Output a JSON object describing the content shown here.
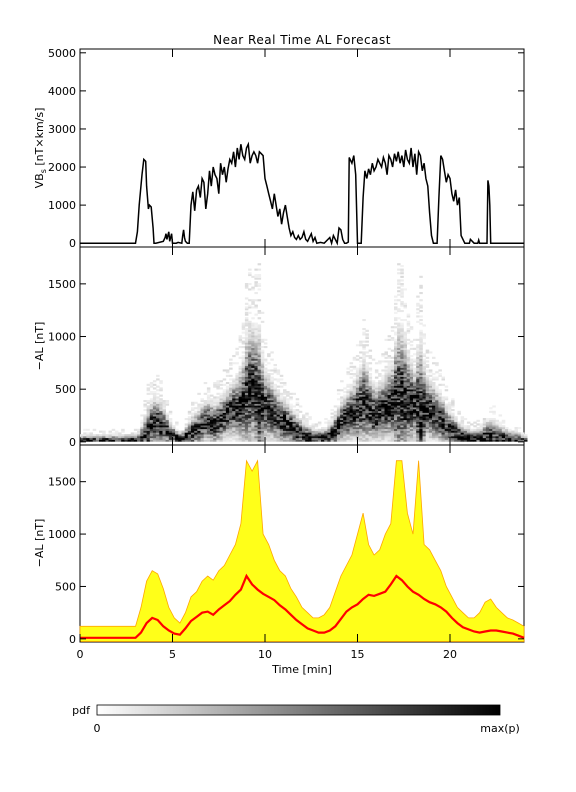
{
  "title": "Near Real Time AL Forecast",
  "xlabel": "Time [min]",
  "chart_data": [
    {
      "type": "line",
      "panel": "top",
      "ylabel_main": "VB",
      "ylabel_sub": "s",
      "ylabel_rest": " [nT×km/s]",
      "ylim": [
        -100,
        5100
      ],
      "yticks": [
        0,
        1000,
        2000,
        3000,
        4000,
        5000
      ],
      "xlim": [
        0,
        24
      ],
      "series": [
        {
          "color": "#000000",
          "x": [
            0,
            3.0,
            3.1,
            3.2,
            3.35,
            3.45,
            3.55,
            3.6,
            3.7,
            3.75,
            3.85,
            3.95,
            4.0,
            4.1,
            4.5,
            4.6,
            4.65,
            4.7,
            4.8,
            4.85,
            4.95,
            5.0,
            5.2,
            5.3,
            5.5,
            5.55,
            5.6,
            5.65,
            5.7,
            5.8,
            5.9,
            6.0,
            6.1,
            6.2,
            6.3,
            6.4,
            6.5,
            6.6,
            6.7,
            6.8,
            6.9,
            7.0,
            7.1,
            7.2,
            7.3,
            7.4,
            7.5,
            7.6,
            7.7,
            7.8,
            7.9,
            8.0,
            8.1,
            8.2,
            8.3,
            8.4,
            8.5,
            8.6,
            8.7,
            8.8,
            8.9,
            9.0,
            9.1,
            9.2,
            9.3,
            9.4,
            9.5,
            9.6,
            9.7,
            9.8,
            9.9,
            10.0,
            10.1,
            10.2,
            10.3,
            10.4,
            10.5,
            10.6,
            10.7,
            10.8,
            10.9,
            11.0,
            11.1,
            11.2,
            11.3,
            11.4,
            11.5,
            11.6,
            11.7,
            11.8,
            11.9,
            12.0,
            12.1,
            12.2,
            12.3,
            12.5,
            12.6,
            12.7,
            12.8,
            13.0,
            13.2,
            13.5,
            13.6,
            13.7,
            13.9,
            14.0,
            14.1,
            14.2,
            14.3,
            14.4,
            14.5,
            14.55,
            14.6,
            14.7,
            14.8,
            14.9,
            15.0,
            15.1,
            15.2,
            15.3,
            15.4,
            15.5,
            15.6,
            15.7,
            15.8,
            15.9,
            16.0,
            16.1,
            16.2,
            16.3,
            16.4,
            16.5,
            16.6,
            16.7,
            16.8,
            16.9,
            17.0,
            17.1,
            17.2,
            17.3,
            17.4,
            17.5,
            17.6,
            17.7,
            17.8,
            17.9,
            18.0,
            18.1,
            18.2,
            18.3,
            18.4,
            18.5,
            18.6,
            18.7,
            18.8,
            18.9,
            19.0,
            19.1,
            19.2,
            19.3,
            19.4,
            19.5,
            19.6,
            19.7,
            19.8,
            19.9,
            20.0,
            20.1,
            20.2,
            20.3,
            20.4,
            20.5,
            20.6,
            20.8,
            21.0,
            21.05,
            21.1,
            21.3,
            21.5,
            21.55,
            21.6,
            21.9,
            22.0,
            22.05,
            22.1,
            22.15,
            22.2,
            24.0
          ],
          "y": [
            0,
            0,
            300,
            1000,
            1800,
            2200,
            2150,
            1500,
            900,
            1000,
            950,
            400,
            0,
            0,
            50,
            150,
            250,
            100,
            300,
            50,
            250,
            0,
            0,
            20,
            0,
            200,
            350,
            150,
            50,
            0,
            0,
            1000,
            1350,
            850,
            1400,
            1500,
            1200,
            1700,
            1600,
            900,
            1300,
            1900,
            1500,
            2000,
            1800,
            1700,
            1300,
            2100,
            1800,
            2000,
            1600,
            1950,
            2200,
            2100,
            2400,
            2000,
            2500,
            2200,
            2600,
            2300,
            2200,
            2500,
            2600,
            2100,
            2300,
            2400,
            2300,
            2100,
            2400,
            2350,
            2300,
            1700,
            1500,
            1300,
            1100,
            900,
            1300,
            1000,
            700,
            900,
            500,
            800,
            1000,
            700,
            400,
            200,
            300,
            150,
            100,
            200,
            100,
            150,
            300,
            100,
            50,
            250,
            50,
            150,
            0,
            20,
            0,
            150,
            0,
            200,
            0,
            400,
            350,
            100,
            0,
            0,
            30,
            2250,
            2200,
            2100,
            2300,
            1800,
            0,
            0,
            0,
            1200,
            1900,
            1700,
            1950,
            1800,
            2100,
            1900,
            2000,
            2200,
            2100,
            2000,
            2250,
            2100,
            1800,
            2300,
            2200,
            2000,
            2350,
            2150,
            2400,
            2100,
            2300,
            2000,
            2450,
            2200,
            2100,
            2500,
            2000,
            2350,
            1800,
            2400,
            2300,
            1900,
            2100,
            1700,
            1500,
            800,
            200,
            0,
            0,
            0,
            1200,
            2300,
            2200,
            1900,
            1600,
            1800,
            1700,
            1300,
            1100,
            1400,
            1000,
            1200,
            200,
            0,
            0,
            0,
            100,
            0,
            0,
            80,
            0,
            0,
            0,
            1650,
            1500,
            1000,
            0,
            0
          ]
        }
      ]
    },
    {
      "type": "heatmap",
      "panel": "middle",
      "ylabel": "−AL [nT]",
      "ylim": [
        -30,
        1850
      ],
      "yticks": [
        0,
        500,
        1000,
        1500
      ],
      "xlim": [
        0,
        24
      ],
      "x": [
        0,
        0.5,
        1.0,
        1.5,
        2.0,
        2.5,
        3.0,
        3.3,
        3.6,
        3.9,
        4.2,
        4.5,
        4.8,
        5.1,
        5.4,
        5.7,
        6.0,
        6.3,
        6.6,
        6.9,
        7.2,
        7.5,
        7.8,
        8.1,
        8.4,
        8.7,
        9.0,
        9.3,
        9.6,
        9.9,
        10.2,
        10.5,
        10.8,
        11.1,
        11.4,
        11.7,
        12.0,
        12.3,
        12.6,
        12.9,
        13.2,
        13.5,
        13.8,
        14.1,
        14.4,
        14.7,
        15.0,
        15.3,
        15.6,
        15.9,
        16.2,
        16.5,
        16.8,
        17.1,
        17.4,
        17.7,
        18.0,
        18.3,
        18.6,
        18.9,
        19.2,
        19.5,
        19.8,
        20.1,
        20.4,
        20.7,
        21.0,
        21.3,
        21.6,
        21.9,
        22.2,
        22.5,
        22.8,
        23.1,
        23.4,
        23.7,
        24.0
      ],
      "center": [
        10,
        10,
        10,
        10,
        10,
        10,
        10,
        40,
        100,
        180,
        170,
        130,
        80,
        40,
        20,
        60,
        90,
        120,
        180,
        200,
        160,
        210,
        250,
        300,
        320,
        360,
        480,
        520,
        380,
        330,
        310,
        250,
        200,
        170,
        120,
        90,
        60,
        40,
        30,
        30,
        40,
        60,
        120,
        200,
        240,
        280,
        320,
        380,
        300,
        250,
        290,
        340,
        370,
        430,
        420,
        380,
        340,
        300,
        320,
        290,
        250,
        200,
        130,
        90,
        70,
        40,
        30,
        20,
        30,
        40,
        40,
        30,
        30,
        20,
        20,
        10,
        0
      ],
      "upper": [
        120,
        120,
        120,
        120,
        120,
        120,
        120,
        300,
        550,
        650,
        620,
        480,
        300,
        200,
        150,
        250,
        400,
        450,
        550,
        600,
        560,
        650,
        700,
        800,
        900,
        1100,
        1700,
        1600,
        1700,
        1000,
        900,
        750,
        650,
        600,
        480,
        400,
        300,
        250,
        200,
        200,
        230,
        300,
        450,
        600,
        700,
        800,
        1000,
        1200,
        900,
        800,
        850,
        1000,
        1100,
        1700,
        1700,
        1200,
        1000,
        1700,
        900,
        850,
        750,
        650,
        500,
        400,
        300,
        250,
        200,
        200,
        250,
        350,
        380,
        300,
        250,
        200,
        180,
        150,
        120
      ]
    },
    {
      "type": "area",
      "panel": "bottom",
      "ylabel": "−AL [nT]",
      "ylim": [
        -30,
        1850
      ],
      "yticks": [
        0,
        500,
        1000,
        1500
      ],
      "xlim": [
        0,
        24
      ],
      "xticks": [
        0,
        5,
        10,
        15,
        20
      ],
      "series": [
        {
          "color": "#ff0000",
          "x": [
            0,
            3.0,
            3.3,
            3.6,
            3.9,
            4.2,
            4.5,
            4.8,
            5.1,
            5.4,
            5.7,
            6.0,
            6.3,
            6.6,
            6.9,
            7.2,
            7.5,
            7.8,
            8.1,
            8.4,
            8.7,
            9.0,
            9.3,
            9.6,
            9.9,
            10.2,
            10.5,
            10.8,
            11.1,
            11.4,
            11.7,
            12.0,
            12.3,
            12.6,
            12.9,
            13.2,
            13.5,
            13.8,
            14.1,
            14.4,
            14.7,
            15.0,
            15.3,
            15.6,
            15.9,
            16.2,
            16.5,
            16.8,
            17.1,
            17.4,
            17.7,
            18.0,
            18.3,
            18.6,
            18.9,
            19.2,
            19.5,
            19.8,
            20.1,
            20.4,
            20.7,
            21.0,
            21.3,
            21.6,
            21.9,
            22.2,
            22.5,
            22.8,
            23.1,
            23.4,
            23.7,
            24.0
          ],
          "y": [
            10,
            10,
            60,
            150,
            200,
            180,
            120,
            80,
            50,
            40,
            100,
            170,
            210,
            250,
            260,
            230,
            280,
            320,
            360,
            420,
            470,
            600,
            520,
            470,
            430,
            400,
            370,
            320,
            280,
            230,
            180,
            140,
            100,
            80,
            60,
            60,
            80,
            120,
            190,
            260,
            300,
            330,
            380,
            420,
            410,
            430,
            450,
            520,
            600,
            560,
            500,
            450,
            420,
            380,
            350,
            330,
            300,
            260,
            200,
            150,
            110,
            90,
            70,
            60,
            70,
            80,
            80,
            70,
            60,
            50,
            30,
            10
          ]
        }
      ],
      "band_upper": [
        120,
        120,
        300,
        550,
        650,
        620,
        480,
        300,
        200,
        150,
        250,
        400,
        450,
        550,
        600,
        560,
        650,
        700,
        800,
        900,
        1100,
        1700,
        1600,
        1700,
        1000,
        900,
        750,
        650,
        600,
        480,
        400,
        300,
        250,
        200,
        200,
        230,
        300,
        450,
        600,
        700,
        800,
        1000,
        1200,
        900,
        800,
        850,
        1000,
        1100,
        1700,
        1700,
        1200,
        1000,
        1700,
        900,
        850,
        750,
        650,
        500,
        400,
        300,
        250,
        200,
        200,
        250,
        350,
        380,
        300,
        250,
        200,
        180,
        150,
        120
      ],
      "fill_color": "#ffff00",
      "edge_color": "#ffa500"
    }
  ],
  "colorbar": {
    "label": "pdf",
    "min_label": "0",
    "max_label": "max(p)"
  }
}
